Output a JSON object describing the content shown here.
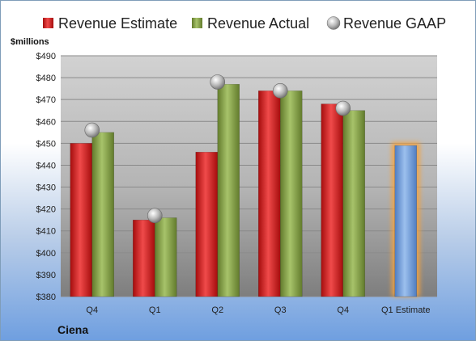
{
  "chart_data": {
    "type": "bar",
    "unit_label": "$millions",
    "company": "Ciena",
    "categories": [
      "Q4",
      "Q1",
      "Q2",
      "Q3",
      "Q4",
      "Q1 Estimate"
    ],
    "ylim": [
      380,
      490
    ],
    "ytick_step": 10,
    "ytick_prefix": "$",
    "grid": true,
    "legend_position": "top",
    "series": [
      {
        "name": "Revenue Estimate",
        "kind": "bar",
        "color": "#d01f1f",
        "values": [
          450,
          415,
          446,
          474,
          468,
          null
        ]
      },
      {
        "name": "Revenue Actual",
        "kind": "bar",
        "color": "#88a34a",
        "values": [
          455,
          416,
          477,
          474,
          465,
          null
        ]
      },
      {
        "name": "Revenue GAAP",
        "kind": "marker",
        "color": "#b8b8b8",
        "values": [
          456,
          417,
          478,
          474,
          466,
          null
        ]
      }
    ],
    "estimate_bar": {
      "category_index": 5,
      "value": 449,
      "color": "#6f9bd6",
      "glow": "#f6a33c"
    }
  }
}
